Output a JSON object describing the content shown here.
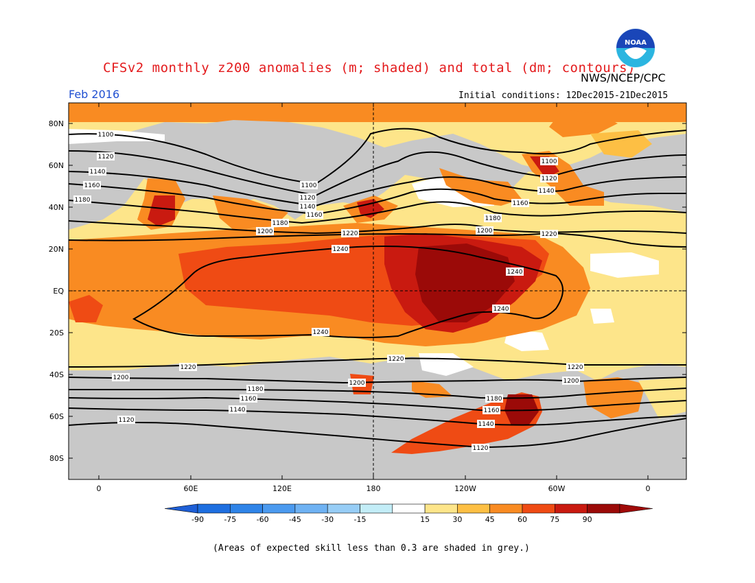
{
  "title": "CFSv2 monthly z200 anomalies (m; shaded) and total (dm; contours)",
  "agency": "NWS/NCEP/CPC",
  "logo_text": "NOAA",
  "month": "Feb 2016",
  "initial_conditions": "Initial conditions: 12Dec2015-21Dec2015",
  "footnote": "(Areas of expected skill less than 0.3 are shaded in grey.)",
  "lat_labels": [
    "80N",
    "60N",
    "40N",
    "20N",
    "EQ",
    "20S",
    "40S",
    "60S",
    "80S"
  ],
  "lon_labels": [
    "0",
    "60E",
    "120E",
    "180",
    "120W",
    "60W",
    "0"
  ],
  "colorbar": {
    "labels": [
      "-90",
      "-75",
      "-60",
      "-45",
      "-30",
      "-15",
      "15",
      "30",
      "45",
      "60",
      "75",
      "90"
    ],
    "colors": [
      "#1e6fe0",
      "#2f84e8",
      "#4b9aef",
      "#6fb2f3",
      "#97cdf6",
      "#c3edf7",
      "#ffffff",
      "#fde58a",
      "#fdbf44",
      "#f98b22",
      "#ef4b14",
      "#c91a10",
      "#9b0a08"
    ],
    "low_end_color": "#1e5fd6",
    "high_end_color": "#a00a08"
  },
  "contour_labels": [
    "1100",
    "1120",
    "1140",
    "1160",
    "1180",
    "1200",
    "1220",
    "1240"
  ],
  "colors": {
    "grey_skill": "#c8c8c8",
    "title_red": "#e31a1c",
    "month_blue": "#1f4fd1"
  }
}
